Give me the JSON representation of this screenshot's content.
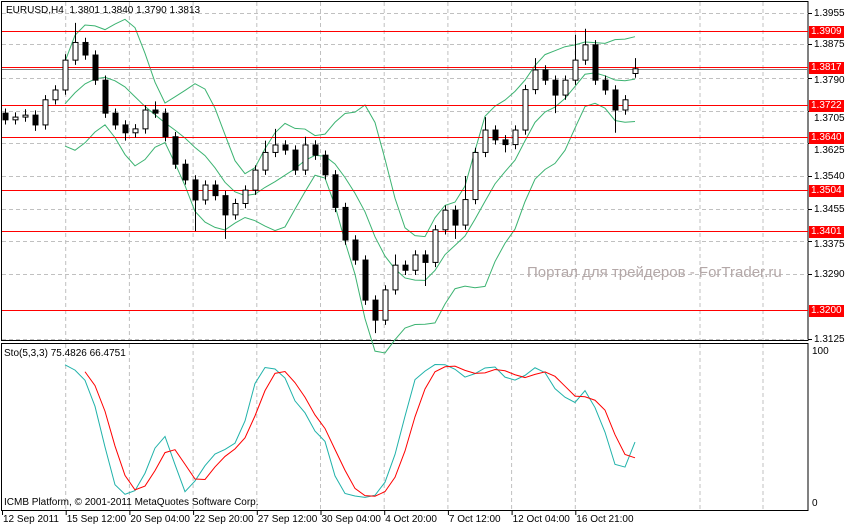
{
  "header": {
    "symbol": "EURUSD,H4",
    "open": "1.3801",
    "high": "1.3840",
    "low": "1.3790",
    "close": "1.3813"
  },
  "watermark": "Портал для трейдеров - ForTrader.ru",
  "copyright": "ICMB Platform, © 2001-2011 MetaQuotes Software Corp.",
  "indicator": {
    "title": "Sto(5,3,3) 75.4826 66.4751",
    "scale_max": "100",
    "scale_min": "0",
    "main_color": "#20b2aa",
    "signal_color": "#ff0000"
  },
  "colors": {
    "background": "#ffffff",
    "grid": "#c0c0c0",
    "bands": "#3cb371",
    "levels": "#ff0000",
    "candles": "#000000"
  },
  "chart_data": {
    "type": "candlestick",
    "symbol": "EURUSD",
    "timeframe": "H4",
    "ylim": [
      1.3125,
      1.3955
    ],
    "grid": true,
    "price_ticks": [
      "1.3955",
      "1.3875",
      "1.3790",
      "1.3705",
      "1.3625",
      "1.3540",
      "1.3455",
      "1.3375",
      "1.3290",
      "1.3125"
    ],
    "time_ticks": [
      "12 Sep 2011",
      "15 Sep 12:00",
      "20 Sep 04:00",
      "22 Sep 20:00",
      "27 Sep 12:00",
      "30 Sep 04:00",
      "4 Oct 20:00",
      "7 Oct 12:00",
      "12 Oct 04:00",
      "16 Oct 21:00"
    ],
    "levels": [
      "1.3909",
      "1.3817",
      "1.3722",
      "1.3640",
      "1.3504",
      "1.3401",
      "1.3200"
    ],
    "bid_line": 1.3817,
    "candles_ohlc": [
      [
        1.37,
        1.3712,
        1.3671,
        1.3683
      ],
      [
        1.3683,
        1.3702,
        1.3671,
        1.369
      ],
      [
        1.369,
        1.371,
        1.3678,
        1.3695
      ],
      [
        1.3695,
        1.3707,
        1.3655,
        1.367
      ],
      [
        1.367,
        1.3746,
        1.3658,
        1.3734
      ],
      [
        1.3734,
        1.3771,
        1.3722,
        1.3759
      ],
      [
        1.3759,
        1.385,
        1.3747,
        1.3835
      ],
      [
        1.3835,
        1.393,
        1.3823,
        1.388
      ],
      [
        1.388,
        1.3892,
        1.3836,
        1.3848
      ],
      [
        1.3848,
        1.386,
        1.3772,
        1.3784
      ],
      [
        1.3784,
        1.3796,
        1.3688,
        1.37
      ],
      [
        1.37,
        1.3712,
        1.3658,
        1.367
      ],
      [
        1.367,
        1.3682,
        1.363,
        1.365
      ],
      [
        1.365,
        1.3672,
        1.3638,
        1.366
      ],
      [
        1.366,
        1.372,
        1.3648,
        1.3708
      ],
      [
        1.3708,
        1.373,
        1.3688,
        1.37
      ],
      [
        1.37,
        1.3712,
        1.3628,
        1.364
      ],
      [
        1.364,
        1.3652,
        1.3558,
        1.357
      ],
      [
        1.357,
        1.3582,
        1.3518,
        1.353
      ],
      [
        1.353,
        1.3542,
        1.34,
        1.3479
      ],
      [
        1.3479,
        1.3529,
        1.3467,
        1.3517
      ],
      [
        1.3517,
        1.3529,
        1.3478,
        1.349
      ],
      [
        1.349,
        1.3502,
        1.338,
        1.3441
      ],
      [
        1.3441,
        1.3482,
        1.3429,
        1.347
      ],
      [
        1.347,
        1.3516,
        1.3458,
        1.3504
      ],
      [
        1.3504,
        1.3567,
        1.3492,
        1.3555
      ],
      [
        1.3555,
        1.363,
        1.3543,
        1.36
      ],
      [
        1.36,
        1.366,
        1.3588,
        1.3619
      ],
      [
        1.3619,
        1.3631,
        1.3594,
        1.3606
      ],
      [
        1.3606,
        1.3618,
        1.3543,
        1.3555
      ],
      [
        1.3555,
        1.364,
        1.3543,
        1.3619
      ],
      [
        1.3619,
        1.3631,
        1.3581,
        1.3593
      ],
      [
        1.3593,
        1.3605,
        1.3531,
        1.3543
      ],
      [
        1.3543,
        1.3555,
        1.3448,
        1.346
      ],
      [
        1.346,
        1.3472,
        1.3365,
        1.3377
      ],
      [
        1.3377,
        1.3389,
        1.3314,
        1.3326
      ],
      [
        1.3326,
        1.3338,
        1.3212,
        1.3224
      ],
      [
        1.3224,
        1.3236,
        1.314,
        1.3173
      ],
      [
        1.3173,
        1.3262,
        1.3161,
        1.325
      ],
      [
        1.325,
        1.334,
        1.3238,
        1.3313
      ],
      [
        1.3313,
        1.3325,
        1.3288,
        1.33
      ],
      [
        1.33,
        1.3351,
        1.3288,
        1.3339
      ],
      [
        1.3339,
        1.3351,
        1.326,
        1.332
      ],
      [
        1.332,
        1.3415,
        1.3308,
        1.3403
      ],
      [
        1.3403,
        1.3465,
        1.3391,
        1.3453
      ],
      [
        1.3453,
        1.3465,
        1.338,
        1.3415
      ],
      [
        1.3415,
        1.354,
        1.3403,
        1.348
      ],
      [
        1.348,
        1.3612,
        1.3468,
        1.36
      ],
      [
        1.36,
        1.369,
        1.3588,
        1.3657
      ],
      [
        1.3657,
        1.3669,
        1.362,
        1.3632
      ],
      [
        1.3632,
        1.3644,
        1.36,
        1.362
      ],
      [
        1.362,
        1.3669,
        1.3608,
        1.3657
      ],
      [
        1.3657,
        1.3772,
        1.3645,
        1.376
      ],
      [
        1.376,
        1.384,
        1.3748,
        1.381
      ],
      [
        1.381,
        1.3822,
        1.3772,
        1.3784
      ],
      [
        1.3784,
        1.3796,
        1.37,
        1.3746
      ],
      [
        1.3746,
        1.3796,
        1.3734,
        1.3784
      ],
      [
        1.3784,
        1.39,
        1.3772,
        1.3835
      ],
      [
        1.3835,
        1.3915,
        1.3823,
        1.3874
      ],
      [
        1.3874,
        1.3886,
        1.3772,
        1.3784
      ],
      [
        1.3784,
        1.3796,
        1.3747,
        1.3759
      ],
      [
        1.3759,
        1.3771,
        1.365,
        1.3708
      ],
      [
        1.3708,
        1.3746,
        1.3696,
        1.3734
      ],
      [
        1.3801,
        1.384,
        1.379,
        1.3813
      ]
    ],
    "indicators": [
      "Bollinger Bands",
      "Stochastic(5,3,3)"
    ],
    "stochastic_last": {
      "main": 75.4826,
      "signal": 66.4751
    },
    "stochastic_ylim": [
      0,
      100
    ]
  }
}
